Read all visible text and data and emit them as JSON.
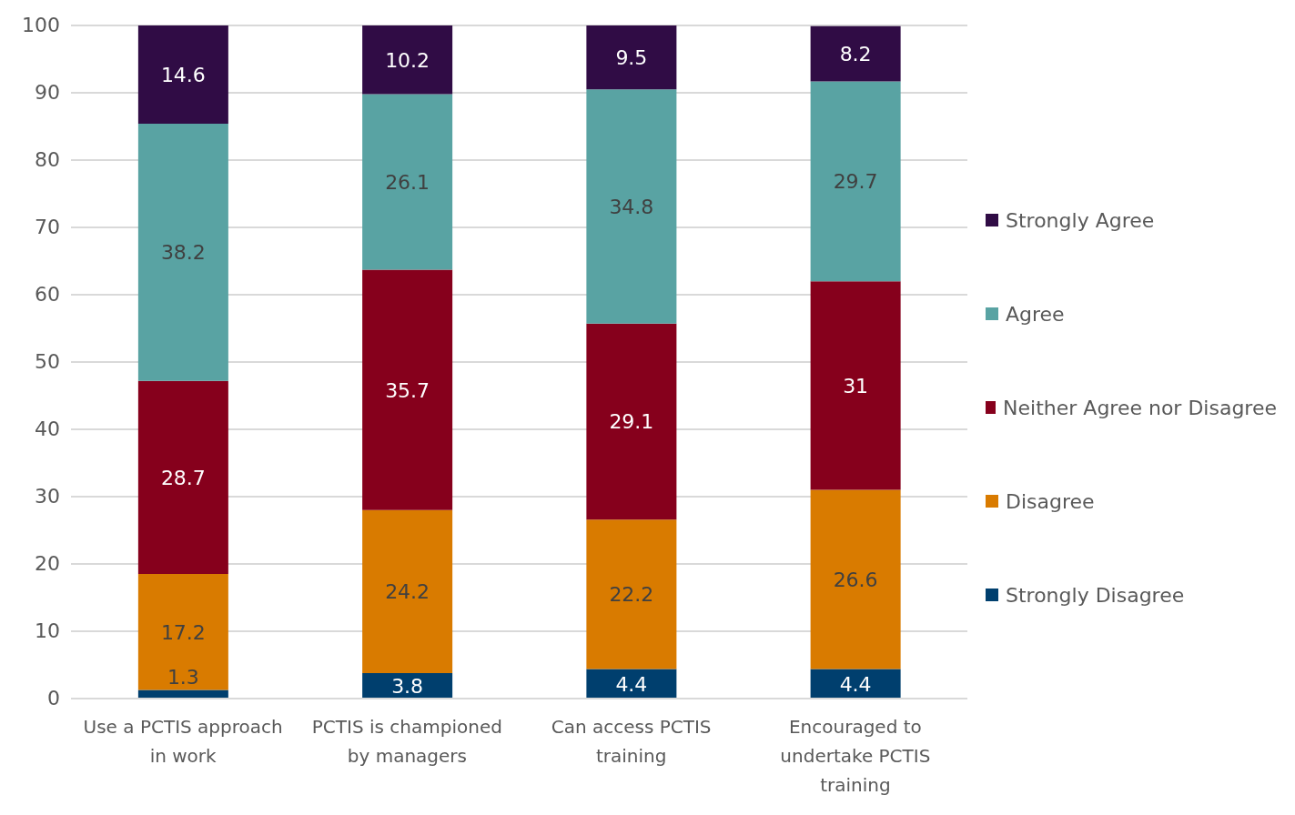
{
  "chart_data": {
    "type": "bar",
    "stacked": true,
    "categories": [
      "Use a PCTIS approach in work",
      "PCTIS is championed by managers",
      "Can access PCTIS training",
      "Encouraged to undertake PCTIS training"
    ],
    "series": [
      {
        "name": "Strongly Disagree",
        "color": "#003f6e",
        "values": [
          1.3,
          3.8,
          4.4,
          4.4
        ]
      },
      {
        "name": "Disagree",
        "color": "#d97b00",
        "values": [
          17.2,
          24.2,
          22.2,
          26.6
        ]
      },
      {
        "name": "Neither Agree nor Disagree",
        "color": "#86001c",
        "values": [
          28.7,
          35.7,
          29.1,
          31
        ]
      },
      {
        "name": "Agree",
        "color": "#59a3a3",
        "values": [
          38.2,
          26.1,
          34.8,
          29.7
        ]
      },
      {
        "name": "Strongly Agree",
        "color": "#300c45",
        "values": [
          14.6,
          10.2,
          9.5,
          8.2
        ]
      }
    ],
    "ylim": [
      0,
      100
    ],
    "yticks": [
      0,
      10,
      20,
      30,
      40,
      50,
      60,
      70,
      80,
      90,
      100
    ],
    "grid": "y",
    "legend": "right",
    "data_labels": true
  }
}
